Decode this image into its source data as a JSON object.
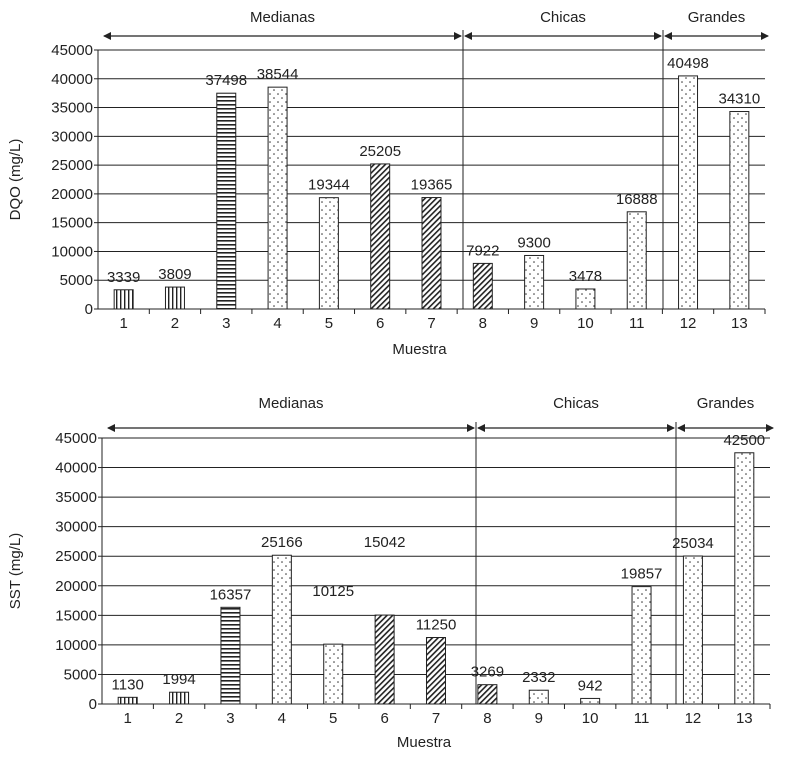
{
  "chart_data": [
    {
      "type": "bar",
      "title": "",
      "xlabel": "Muestra",
      "ylabel": "DQO (mg/L)",
      "ylim": [
        0,
        45000
      ],
      "yticks": [
        0,
        5000,
        10000,
        15000,
        20000,
        25000,
        30000,
        35000,
        40000,
        45000
      ],
      "grid": true,
      "categories": [
        "1",
        "2",
        "3",
        "4",
        "5",
        "6",
        "7",
        "8",
        "9",
        "10",
        "11",
        "12",
        "13"
      ],
      "values": [
        3339,
        3809,
        37498,
        38544,
        19344,
        25205,
        19365,
        7922,
        9300,
        3478,
        16888,
        40498,
        34310
      ],
      "value_labels": [
        "3339",
        "3809",
        "37498",
        "38544",
        "19344",
        "25205",
        "19365",
        "7922",
        "9300",
        "3478",
        "16888",
        "40498",
        "34310"
      ],
      "patterns": [
        "vertical",
        "vertical",
        "horizontal",
        "dots",
        "dots",
        "diagonal",
        "diagonal",
        "diagonal",
        "dots",
        "dots",
        "dots",
        "dots",
        "dots"
      ],
      "groups": [
        {
          "label": "Medianas",
          "first": 1,
          "last": 7
        },
        {
          "label": "Chicas",
          "first": 8,
          "last": 11
        },
        {
          "label": "Grandes",
          "first": 12,
          "last": 13
        }
      ]
    },
    {
      "type": "bar",
      "title": "",
      "xlabel": "Muestra",
      "ylabel": "SST (mg/L)",
      "ylim": [
        0,
        45000
      ],
      "yticks": [
        0,
        5000,
        10000,
        15000,
        20000,
        25000,
        30000,
        35000,
        40000,
        45000
      ],
      "grid": true,
      "categories": [
        "1",
        "2",
        "3",
        "4",
        "5",
        "6",
        "7",
        "8",
        "9",
        "10",
        "11",
        "12",
        "13"
      ],
      "values": [
        1130,
        1994,
        16357,
        25166,
        10125,
        15042,
        11250,
        3269,
        2332,
        942,
        19857,
        25034,
        42500
      ],
      "value_labels": [
        "1130",
        "1994",
        "16357",
        "25166",
        "10125",
        "15042",
        "11250",
        "3269",
        "2332",
        "942",
        "19857",
        "25034",
        "42500"
      ],
      "patterns": [
        "vertical",
        "vertical",
        "horizontal",
        "dots",
        "dots",
        "diagonal",
        "diagonal",
        "diagonal",
        "dots",
        "dots",
        "dots",
        "dots",
        "dots"
      ],
      "groups": [
        {
          "label": "Medianas",
          "first": 1,
          "last": 7
        },
        {
          "label": "Chicas",
          "first": 8,
          "last": 11
        },
        {
          "label": "Grandes",
          "first": 12,
          "last": 13
        }
      ]
    }
  ]
}
